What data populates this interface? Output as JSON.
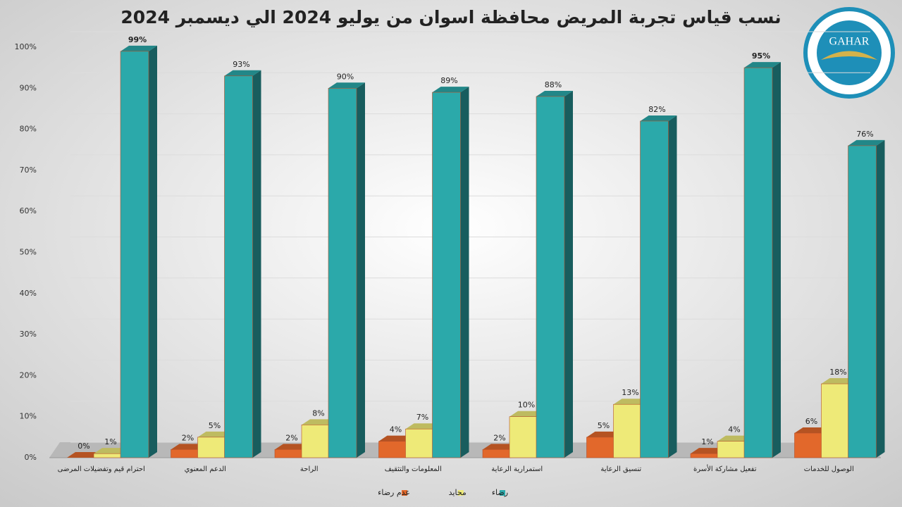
{
  "chart_data": {
    "type": "bar3d",
    "title": "نسب قياس تجربة المريض محافظة اسوان من يوليو 2024 الي ديسمبر 2024",
    "logo": "GAHAR",
    "categories": [
      "احترام قيم وتفضيلات المرضى",
      "الدعم المعنوي",
      "الراحة",
      "المعلومات والتثقيف",
      "استمرارية الرعاية",
      "تنسيق الرعاية",
      "تفعيل مشاركة الأسرة",
      "الوصول للخدمات"
    ],
    "series": [
      {
        "name": "عدم رضاء",
        "color": "#e2682b",
        "values": [
          0,
          2,
          2,
          4,
          2,
          5,
          1,
          6
        ],
        "value_labels": [
          "0%",
          "2%",
          "2%",
          "4%",
          "2%",
          "5%",
          "1%",
          "6%"
        ]
      },
      {
        "name": "محايد",
        "color": "#eeea78",
        "values": [
          1,
          5,
          8,
          7,
          10,
          13,
          4,
          18
        ],
        "value_labels": [
          "1%",
          "5%",
          "8%",
          "7%",
          "10%",
          "13%",
          "4%",
          "18%"
        ]
      },
      {
        "name": "رضاء",
        "color": "#2ba9aa",
        "values": [
          99,
          93,
          90,
          89,
          88,
          82,
          95,
          76
        ],
        "value_labels": [
          "99%",
          "93%",
          "90%",
          "89%",
          "88%",
          "82%",
          "95%",
          "76%"
        ]
      }
    ],
    "ylim": [
      0,
      100
    ],
    "yticks": [
      {
        "value": 0,
        "label": "0%"
      },
      {
        "value": 10,
        "label": "10%"
      },
      {
        "value": 20,
        "label": "20%"
      },
      {
        "value": 30,
        "label": "30%"
      },
      {
        "value": 40,
        "label": "40%"
      },
      {
        "value": 50,
        "label": "50%"
      },
      {
        "value": 60,
        "label": "60%"
      },
      {
        "value": 70,
        "label": "70%"
      },
      {
        "value": 80,
        "label": "80%"
      },
      {
        "value": 90,
        "label": "90%"
      },
      {
        "value": 100,
        "label": "100%"
      }
    ],
    "grid": true,
    "legend": "bottom"
  }
}
